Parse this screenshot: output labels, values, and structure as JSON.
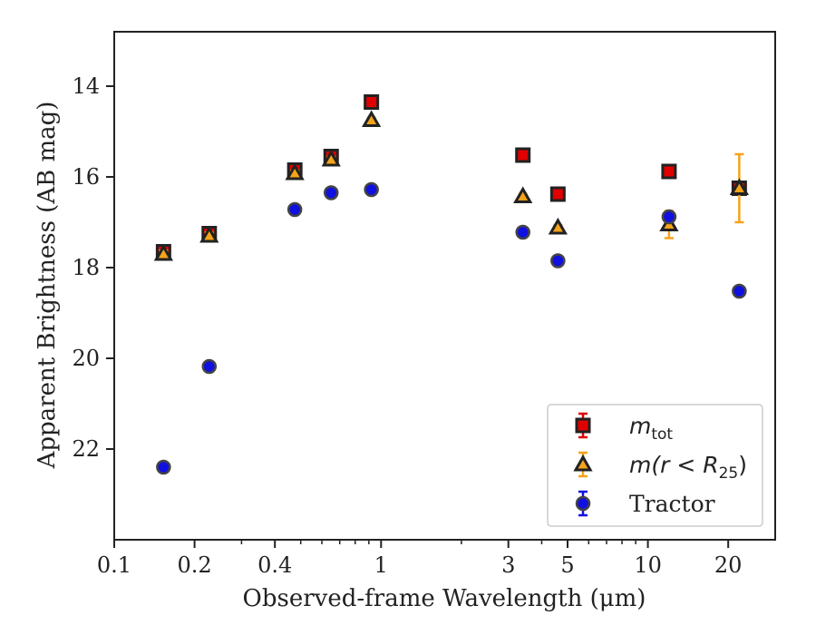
{
  "chart_data": {
    "type": "scatter",
    "title": "",
    "xlabel": "Observed-frame Wavelength (μm)",
    "ylabel": "Apparent Brightness (AB mag)",
    "xscale": "log",
    "xlim": [
      0.1,
      30
    ],
    "ylim": [
      24,
      12.8
    ],
    "y_inverted": true,
    "xticks": [
      0.1,
      0.2,
      0.4,
      1,
      3,
      5,
      10,
      20
    ],
    "xtick_labels": [
      "0.1",
      "0.2",
      "0.4",
      "1",
      "3",
      "5",
      "10",
      "20"
    ],
    "yticks": [
      14,
      16,
      18,
      20,
      22
    ],
    "ytick_labels": [
      "14",
      "16",
      "18",
      "20",
      "22"
    ],
    "grid": false,
    "legend_position": "lower-right",
    "series": [
      {
        "name": "m_tot",
        "legend_label": {
          "italic": "m",
          "sub": "tot",
          "rest": ""
        },
        "marker": "square",
        "color": "#e00000",
        "edge": "#222222",
        "errcolor": "#e00000",
        "points": [
          {
            "x": 0.153,
            "y": 17.65,
            "err": 0.1
          },
          {
            "x": 0.227,
            "y": 17.25,
            "err": 0.08
          },
          {
            "x": 0.475,
            "y": 15.85,
            "err": 0.06
          },
          {
            "x": 0.65,
            "y": 15.55,
            "err": 0.06
          },
          {
            "x": 0.92,
            "y": 14.35,
            "err": 0.05
          },
          {
            "x": 3.4,
            "y": 15.52,
            "err": 0.05
          },
          {
            "x": 4.6,
            "y": 16.38,
            "err": 0.05
          },
          {
            "x": 12.0,
            "y": 15.88,
            "err": 0.05
          },
          {
            "x": 22.0,
            "y": 16.25,
            "err": 0.05
          }
        ]
      },
      {
        "name": "m(r < R_25)",
        "legend_label": {
          "italic": "m",
          "rest": "(r < R",
          "sub": "25",
          "close": ")"
        },
        "marker": "triangle",
        "color": "#f5a31a",
        "edge": "#222222",
        "errcolor": "#f5a31a",
        "points": [
          {
            "x": 0.153,
            "y": 17.7,
            "err": 0.08
          },
          {
            "x": 0.227,
            "y": 17.3,
            "err": 0.08
          },
          {
            "x": 0.475,
            "y": 15.92,
            "err": 0.06
          },
          {
            "x": 0.65,
            "y": 15.62,
            "err": 0.06
          },
          {
            "x": 0.92,
            "y": 14.75,
            "err": 0.05
          },
          {
            "x": 3.4,
            "y": 16.43,
            "err": 0.05
          },
          {
            "x": 4.6,
            "y": 17.12,
            "err": 0.06
          },
          {
            "x": 12.0,
            "y": 17.05,
            "err": 0.3
          },
          {
            "x": 22.0,
            "y": 16.25,
            "err": 0.75
          }
        ]
      },
      {
        "name": "Tractor",
        "legend_label": {
          "plain": "Tractor"
        },
        "marker": "circle",
        "color": "#1010e0",
        "edge": "#444444",
        "errcolor": "#1010e0",
        "points": [
          {
            "x": 0.153,
            "y": 22.4,
            "err": 0.06
          },
          {
            "x": 0.227,
            "y": 20.18,
            "err": 0.05
          },
          {
            "x": 0.475,
            "y": 16.72,
            "err": 0.04
          },
          {
            "x": 0.65,
            "y": 16.35,
            "err": 0.04
          },
          {
            "x": 0.92,
            "y": 16.28,
            "err": 0.04
          },
          {
            "x": 3.4,
            "y": 17.22,
            "err": 0.04
          },
          {
            "x": 4.6,
            "y": 17.85,
            "err": 0.04
          },
          {
            "x": 12.0,
            "y": 16.88,
            "err": 0.04
          },
          {
            "x": 22.0,
            "y": 18.52,
            "err": 0.05
          }
        ]
      }
    ]
  }
}
